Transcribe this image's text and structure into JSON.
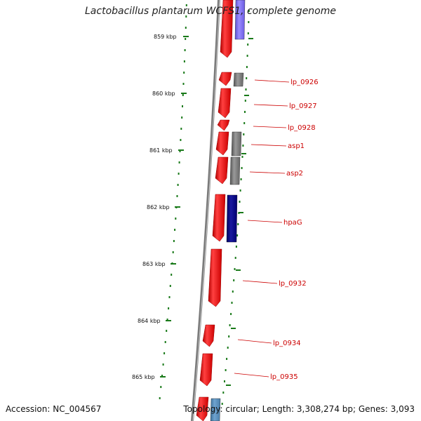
{
  "title": "Lactobacillus plantarum WCFS1, complete genome",
  "accession": "Accession: NC_004567",
  "topology": "Topology: circular; Length: 3,308,274 bp; Genes: 3,093",
  "kbp_labels": [
    "859 kbp",
    "860 kbp",
    "861 kbp",
    "862 kbp",
    "863 kbp",
    "864 kbp",
    "865 kbp"
  ],
  "gene_labels": [
    "lp_0926",
    "lp_0927",
    "lp_0928",
    "asp1",
    "asp2",
    "hpaG",
    "lp_0932",
    "lp_0934",
    "lp_0935"
  ],
  "colors": {
    "forward_cds": "#ff0000",
    "reverse_cds_gray": "#777777",
    "reverse_cds_blue": "#000088",
    "reverse_cds_light_blue": "#7b68ee",
    "backbone": "#888888",
    "tick": "#1a7a1a",
    "label": "#cc0000"
  }
}
